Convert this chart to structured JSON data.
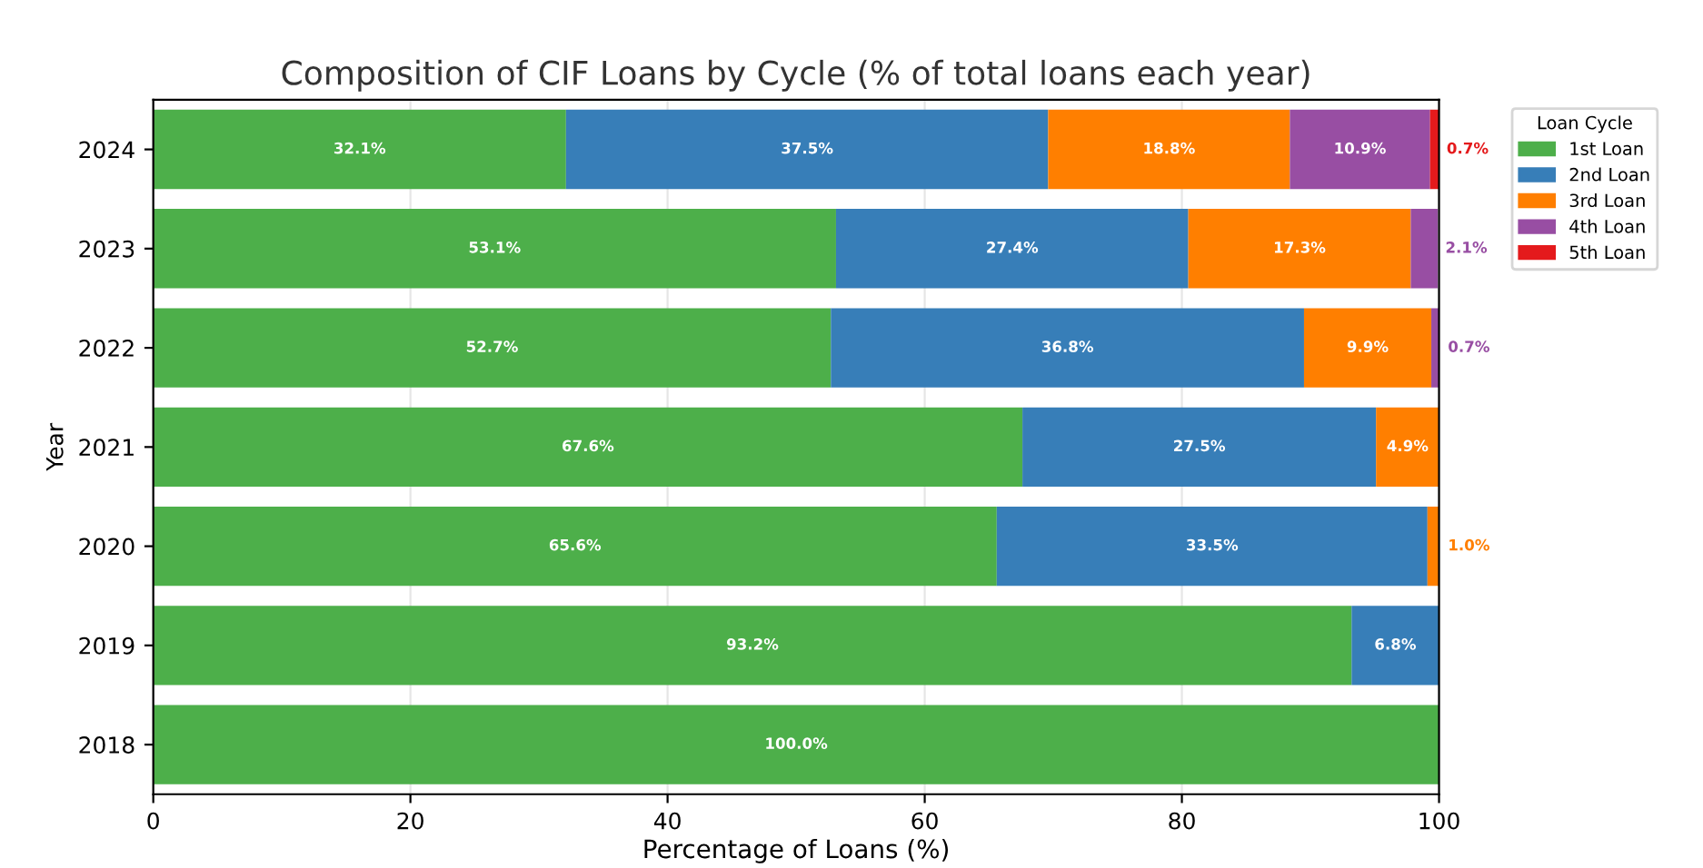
{
  "chart_data": {
    "type": "bar",
    "orientation": "horizontal",
    "stacked": true,
    "title": "Composition of CIF Loans by Cycle (% of total loans each year)",
    "xlabel": "Percentage of Loans (%)",
    "ylabel": "Year",
    "legend_title": "Loan Cycle",
    "categories": [
      "2024",
      "2023",
      "2022",
      "2021",
      "2020",
      "2019",
      "2018"
    ],
    "series": [
      {
        "name": "1st Loan",
        "color": "#4daf4a",
        "values": [
          32.1,
          53.1,
          52.7,
          67.6,
          65.6,
          93.2,
          100.0
        ],
        "value_labels": [
          "32.1%",
          "53.1%",
          "52.7%",
          "67.6%",
          "65.6%",
          "93.2%",
          "100.0%"
        ]
      },
      {
        "name": "2nd Loan",
        "color": "#377eb8",
        "values": [
          37.5,
          27.4,
          36.8,
          27.5,
          33.5,
          6.8,
          0
        ],
        "value_labels": [
          "37.5%",
          "27.4%",
          "36.8%",
          "27.5%",
          "33.5%",
          "6.8%",
          null
        ]
      },
      {
        "name": "3rd Loan",
        "color": "#ff7f00",
        "values": [
          18.8,
          17.3,
          9.9,
          4.9,
          1.0,
          0,
          0
        ],
        "value_labels": [
          "18.8%",
          "17.3%",
          "9.9%",
          "4.9%",
          "1.0%",
          null,
          null
        ]
      },
      {
        "name": "4th Loan",
        "color": "#984ea3",
        "values": [
          10.9,
          2.1,
          0.7,
          0,
          0,
          0,
          0
        ],
        "value_labels": [
          "10.9%",
          "2.1%",
          "0.7%",
          null,
          null,
          null,
          null
        ]
      },
      {
        "name": "5th Loan",
        "color": "#e41a1c",
        "values": [
          0.7,
          0,
          0,
          0,
          0,
          0,
          0
        ],
        "value_labels": [
          "0.7%",
          null,
          null,
          null,
          null,
          null,
          null
        ]
      }
    ],
    "xlim": [
      0,
      100
    ],
    "xticks": [
      0,
      20,
      40,
      60,
      80,
      100
    ],
    "grid": "x",
    "legend": "top right"
  }
}
